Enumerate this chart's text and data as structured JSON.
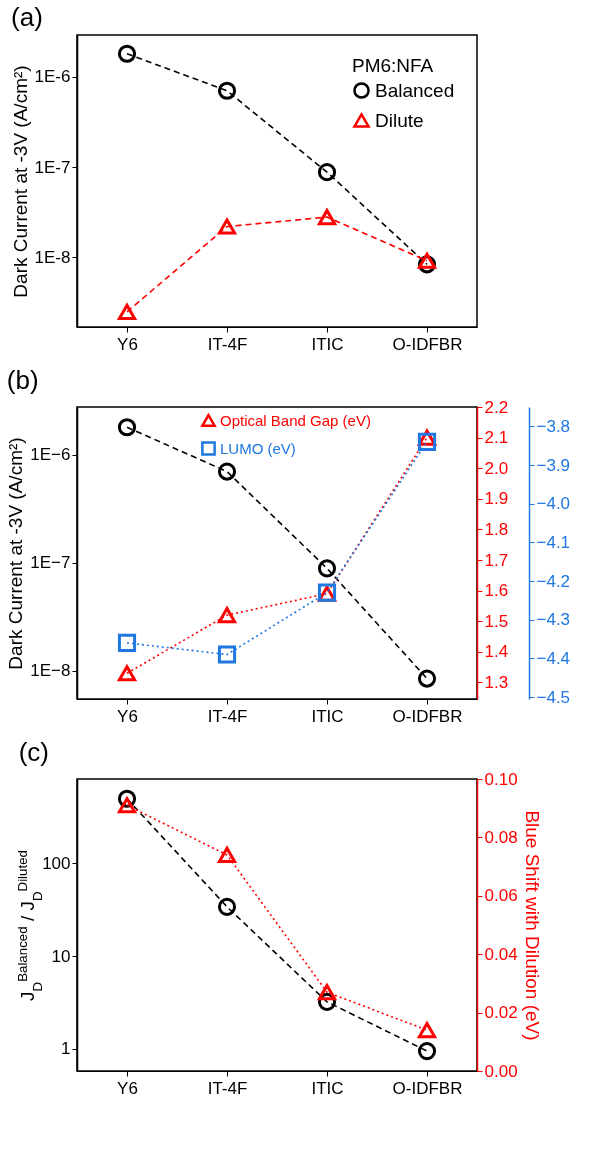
{
  "chart_data": [
    {
      "type": "line",
      "title": "(a)",
      "ylabel": "Dark Current at -3V (A/cm²)",
      "legend_title": "PM6:NFA",
      "legend": "top right",
      "log": true,
      "categories": [
        "Y6",
        "IT-4F",
        "ITIC",
        "O-IDFBR"
      ],
      "ylim": [
        1.7e-09,
        2.9e-06
      ],
      "yticks": [
        {
          "value": 1e-08,
          "label": "1E-8"
        },
        {
          "value": 1e-07,
          "label": "1E-7"
        },
        {
          "value": 1e-06,
          "label": "1E-6"
        }
      ],
      "series": [
        {
          "name": "Balanced",
          "color": "#000000",
          "marker": "circle",
          "line_style": "dashed",
          "values": [
            1.8e-06,
            7e-07,
            8.8e-08,
            8.4e-09
          ]
        },
        {
          "name": "Dilute",
          "color": "#ff0000",
          "marker": "triangle",
          "line_style": "dashed",
          "values": [
            2.5e-09,
            2.2e-08,
            2.8e-08,
            9.2e-09
          ]
        }
      ]
    },
    {
      "type": "line",
      "title": "(b)",
      "ylabel": "Dark Current at -3V (A/cm²)",
      "legend": "top",
      "log": "y",
      "categories": [
        "Y6",
        "IT-4F",
        "ITIC",
        "O-IDFBR"
      ],
      "ylim": [
        5.5e-09,
        2.77e-06
      ],
      "yticks": [
        {
          "value": 1e-08,
          "label": "1E−8"
        },
        {
          "value": 1e-07,
          "label": "1E−7"
        },
        {
          "value": 1e-06,
          "label": "1E−6"
        }
      ],
      "y2lim": [
        1.246,
        2.2
      ],
      "y2ticks": [
        1.3,
        1.4,
        1.5,
        1.6,
        1.7,
        1.8,
        1.9,
        {
          "value": 2.0,
          "label": "2.0"
        },
        2.1,
        2.2
      ],
      "y3lim": [
        -4.505,
        -3.75
      ],
      "y3ticks": [
        {
          "value": -4.5,
          "label": "−4.5"
        },
        {
          "value": -4.4,
          "label": "−4.4"
        },
        {
          "value": -4.3,
          "label": "−4.3"
        },
        {
          "value": -4.2,
          "label": "−4.2"
        },
        {
          "value": -4.1,
          "label": "−4.1"
        },
        {
          "value": -4.0,
          "label": "−4.0"
        },
        {
          "value": -3.9,
          "label": "−3.9"
        },
        {
          "value": -3.8,
          "label": "−3.8"
        }
      ],
      "series": [
        {
          "color": "#000000",
          "marker": "circle",
          "line_style": "dashed",
          "values": [
            1.8e-06,
            7e-07,
            8.9e-08,
            8.5e-09
          ]
        },
        {
          "name": "Optical Band Gap (eV)",
          "color": "#ff0000",
          "marker": "triangle",
          "line_style": "dotted",
          "axis": "y2",
          "values": [
            1.33,
            1.52,
            1.59,
            2.1
          ]
        },
        {
          "name": "LUMO (eV)",
          "color": "#1f77e0",
          "marker": "square",
          "line_style": "dotted",
          "axis": "y3",
          "values": [
            -4.36,
            -4.39,
            -4.23,
            -3.84
          ]
        }
      ]
    },
    {
      "type": "line",
      "title": "(c)",
      "ylabel": "J$_{D}$$^{Balanced}$ / J$_{D}$$^{Diluted}$",
      "y2label": "Blue Shift with Dilution (eV)",
      "log": "y",
      "categories": [
        "Y6",
        "IT-4F",
        "ITIC",
        "O-IDFBR"
      ],
      "ylim": [
        0.573,
        817
      ],
      "yticks": [
        1,
        10,
        100
      ],
      "y2lim": [
        0,
        0.1
      ],
      "y2ticks": [
        {
          "value": 0,
          "label": "0.00"
        },
        {
          "value": 0.02,
          "label": "0.02"
        },
        {
          "value": 0.04,
          "label": "0.04"
        },
        {
          "value": 0.06,
          "label": "0.06"
        },
        {
          "value": 0.08,
          "label": "0.08"
        },
        {
          "value": 0.1,
          "label": "0.10"
        }
      ],
      "series": [
        {
          "color": "#000000",
          "marker": "circle",
          "line_style": "dashed",
          "values": [
            500,
            34,
            3.2,
            0.94
          ]
        },
        {
          "color": "#ff0000",
          "marker": "triangle",
          "line_style": "dotted",
          "axis": "y2",
          "values": [
            0.091,
            0.074,
            0.027,
            0.014
          ]
        }
      ]
    }
  ]
}
